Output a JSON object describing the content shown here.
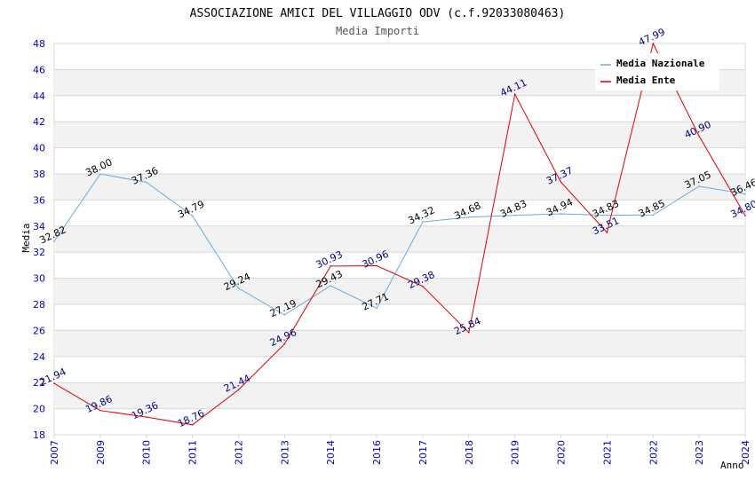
{
  "colors": {
    "nazionale": "#6fa8dc",
    "ente": "#e00000",
    "band": "#f2f2f2",
    "grid": "#d8d8d8",
    "axis_text": "#0000cc"
  },
  "chart_data": {
    "type": "line",
    "title": "ASSOCIAZIONE AMICI DEL VILLAGGIO ODV (c.f.92033080463)",
    "subtitle": "Media Importi",
    "xlabel": "Anno",
    "ylabel": "Media",
    "ylim": [
      18,
      48
    ],
    "yticks": [
      "18",
      "20",
      "22",
      "24",
      "26",
      "28",
      "30",
      "32",
      "34",
      "36",
      "38",
      "40",
      "42",
      "44",
      "46",
      "48"
    ],
    "grid": true,
    "legend_position": "top-right",
    "categories": [
      "2007",
      "2009",
      "2010",
      "2011",
      "2012",
      "2013",
      "2014",
      "2016",
      "2017",
      "2018",
      "2019",
      "2020",
      "2021",
      "2022",
      "2023",
      "2024"
    ],
    "series": [
      {
        "name": "Media Nazionale",
        "values": [
          32.82,
          38.0,
          37.36,
          34.79,
          29.24,
          27.19,
          29.43,
          27.71,
          34.32,
          34.68,
          34.83,
          34.94,
          34.83,
          34.85,
          37.05,
          36.46
        ],
        "labels": [
          "32.82",
          "38.00",
          "37.36",
          "34.79",
          "29.24",
          "27.19",
          "29.43",
          "27.71",
          "34.32",
          "34.68",
          "34.83",
          "34.94",
          "34.83",
          "34.85",
          "37.05",
          "36.46"
        ]
      },
      {
        "name": "Media Ente",
        "values": [
          21.94,
          19.86,
          19.36,
          18.76,
          21.44,
          24.96,
          30.93,
          30.96,
          29.38,
          25.84,
          44.11,
          37.37,
          33.51,
          47.99,
          40.9,
          34.8
        ],
        "labels": [
          "21.94",
          "19.86",
          "19.36",
          "18.76",
          "21.44",
          "24.96",
          "30.93",
          "30.96",
          "29.38",
          "25.84",
          "44.11",
          "37.37",
          "33.51",
          "47.99",
          "40.90",
          "34.80"
        ]
      }
    ]
  }
}
